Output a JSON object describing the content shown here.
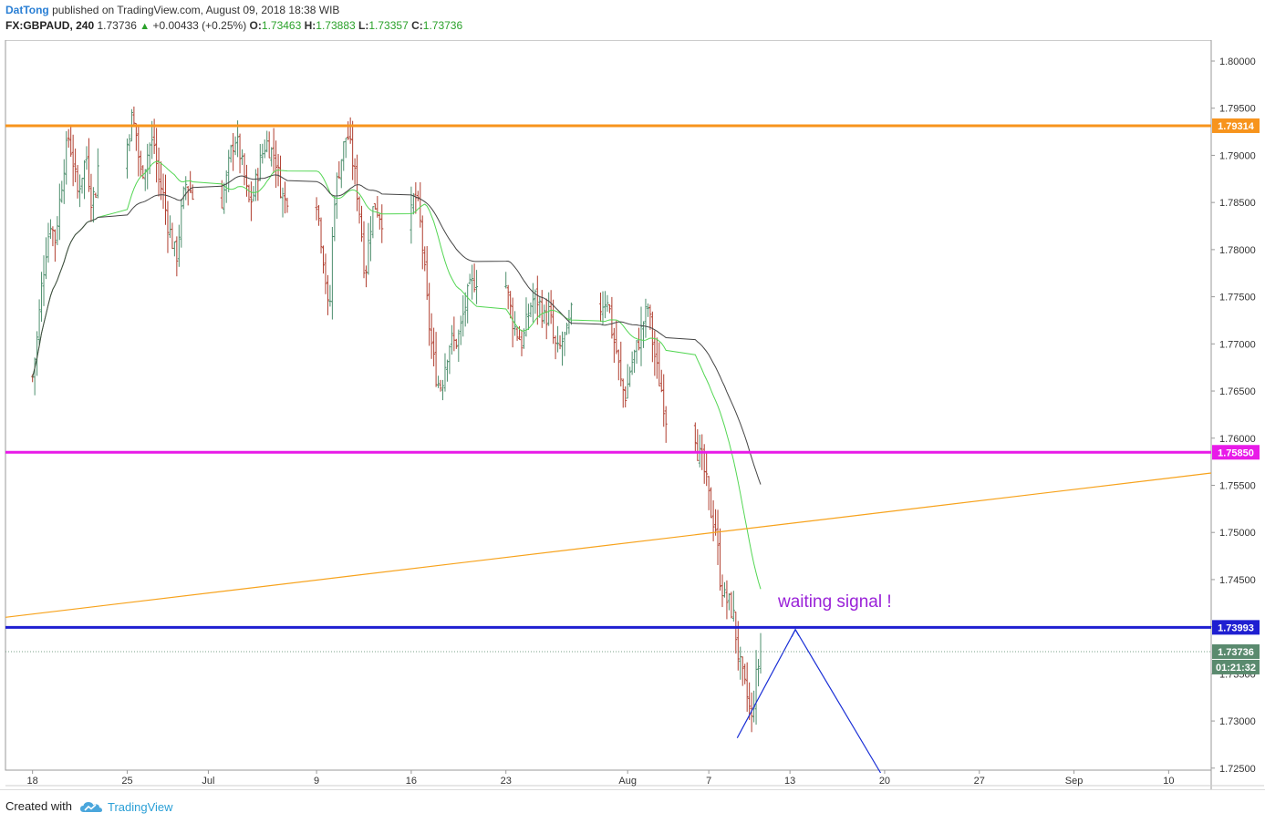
{
  "header": {
    "author": "DatTong",
    "published": "published on TradingView.com, August 09, 2018 18:38 WIB",
    "symbol": "FX:GBPAUD, 240",
    "last": "1.73736",
    "change": "+0.00433 (+0.25%)",
    "o_label": "O:",
    "o_value": "1.73463",
    "h_label": "H:",
    "h_value": "1.73883",
    "l_label": "L:",
    "l_value": "1.73357",
    "c_label": "C:",
    "c_value": "1.73736"
  },
  "footer": {
    "created_with": "Created with",
    "brand": "TradingView"
  },
  "colors": {
    "up_bar": "#4e8f6e",
    "down_bar": "#b03e2f",
    "ma_fast": "#53d653",
    "ma_slow": "#454545",
    "level_top": "#f7941d",
    "level_mid": "#e81ae8",
    "level_low": "#1f1fd1",
    "trendline": "#f7a21b",
    "forecast": "#1a2fd6",
    "annotation": "#9a22d8",
    "price_marker": "#5a8a6e"
  },
  "chart_data": {
    "type": "ohlc-bar",
    "symbol": "FX:GBPAUD",
    "timeframe": "240",
    "ylim": [
      1.7225,
      1.8025
    ],
    "y_ticks": [
      "1.80000",
      "1.79500",
      "1.79000",
      "1.78500",
      "1.78000",
      "1.77500",
      "1.77000",
      "1.76500",
      "1.76000",
      "1.75500",
      "1.75000",
      "1.74500",
      "1.74000",
      "1.73500",
      "1.73000",
      "1.72500"
    ],
    "x_ticks": [
      "18",
      "25",
      "Jul",
      "9",
      "16",
      "23",
      "Aug",
      "7",
      "13",
      "20",
      "27",
      "Sep",
      "10"
    ],
    "horizontal_levels": [
      {
        "value": 1.79314,
        "label": "1.79314",
        "color": "#f7941d"
      },
      {
        "value": 1.7585,
        "label": "1.75850",
        "color": "#e81ae8"
      },
      {
        "value": 1.73993,
        "label": "1.73993",
        "color": "#1f1fd1"
      }
    ],
    "last_price": {
      "value": 1.73736,
      "label": "1.73736",
      "countdown": "01:21:32"
    },
    "trendline": {
      "from": {
        "date": "Jun 18",
        "price": 1.741
      },
      "to": {
        "date": "Sep 10",
        "price": 1.7563
      }
    },
    "forecast_path": [
      {
        "date": "Aug 9",
        "price": 1.7282
      },
      {
        "date": "Aug 14",
        "price": 1.7397
      },
      {
        "date": "Aug 20",
        "price": 1.7245
      }
    ],
    "annotation": "waiting signal !",
    "series_close": [
      1.7665,
      1.7705,
      1.776,
      1.78,
      1.783,
      1.781,
      1.785,
      1.789,
      1.792,
      1.7895,
      1.786,
      1.788,
      1.79,
      1.7855,
      1.786,
      1.791,
      1.794,
      1.7925,
      1.788,
      1.789,
      1.791,
      1.7915,
      1.7875,
      1.786,
      1.783,
      1.781,
      1.779,
      1.7835,
      1.787,
      1.7865,
      1.785,
      1.787,
      1.79,
      1.792,
      1.7905,
      1.788,
      1.785,
      1.7855,
      1.788,
      1.79,
      1.7915,
      1.7905,
      1.79,
      1.787,
      1.785,
      1.786,
      1.782,
      1.778,
      1.772,
      1.785,
      1.788,
      1.7905,
      1.7925,
      1.79,
      1.787,
      1.783,
      1.777,
      1.782,
      1.785,
      1.784,
      1.783,
      1.786,
      1.784,
      1.779,
      1.773,
      1.769,
      1.766,
      1.7655,
      1.7685,
      1.7705,
      1.77,
      1.771,
      1.7735,
      1.7755,
      1.7765,
      1.777,
      1.7745,
      1.772,
      1.771,
      1.77,
      1.7725,
      1.7745,
      1.775,
      1.774,
      1.7725,
      1.7735,
      1.77,
      1.769,
      1.7705,
      1.771,
      1.7735,
      1.7745,
      1.775,
      1.771,
      1.769,
      1.7655,
      1.7645,
      1.7675,
      1.769,
      1.7705,
      1.7725,
      1.774,
      1.77,
      1.767,
      1.765,
      1.762,
      1.7585,
      1.7575,
      1.755,
      1.752,
      1.7505,
      1.745,
      1.743,
      1.7425,
      1.741,
      1.737,
      1.7345,
      1.7325,
      1.73,
      1.7346,
      1.7374
    ]
  }
}
